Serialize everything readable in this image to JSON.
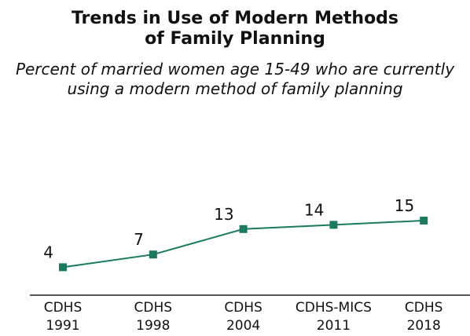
{
  "chart_data": {
    "type": "line",
    "title": "Trends in Use of Modern Methods of Family Planning",
    "subtitle": "Percent of married women age 15-49 who are currently using a modern method of family planning",
    "categories": [
      "CDHS 1991",
      "CDHS 1998",
      "CDHS 2004",
      "CDHS-MICS 2011",
      "CDHS 2018"
    ],
    "values": [
      4,
      7,
      13,
      14,
      15
    ],
    "color": "#1b7a5e",
    "ylim": [
      0,
      40
    ]
  }
}
